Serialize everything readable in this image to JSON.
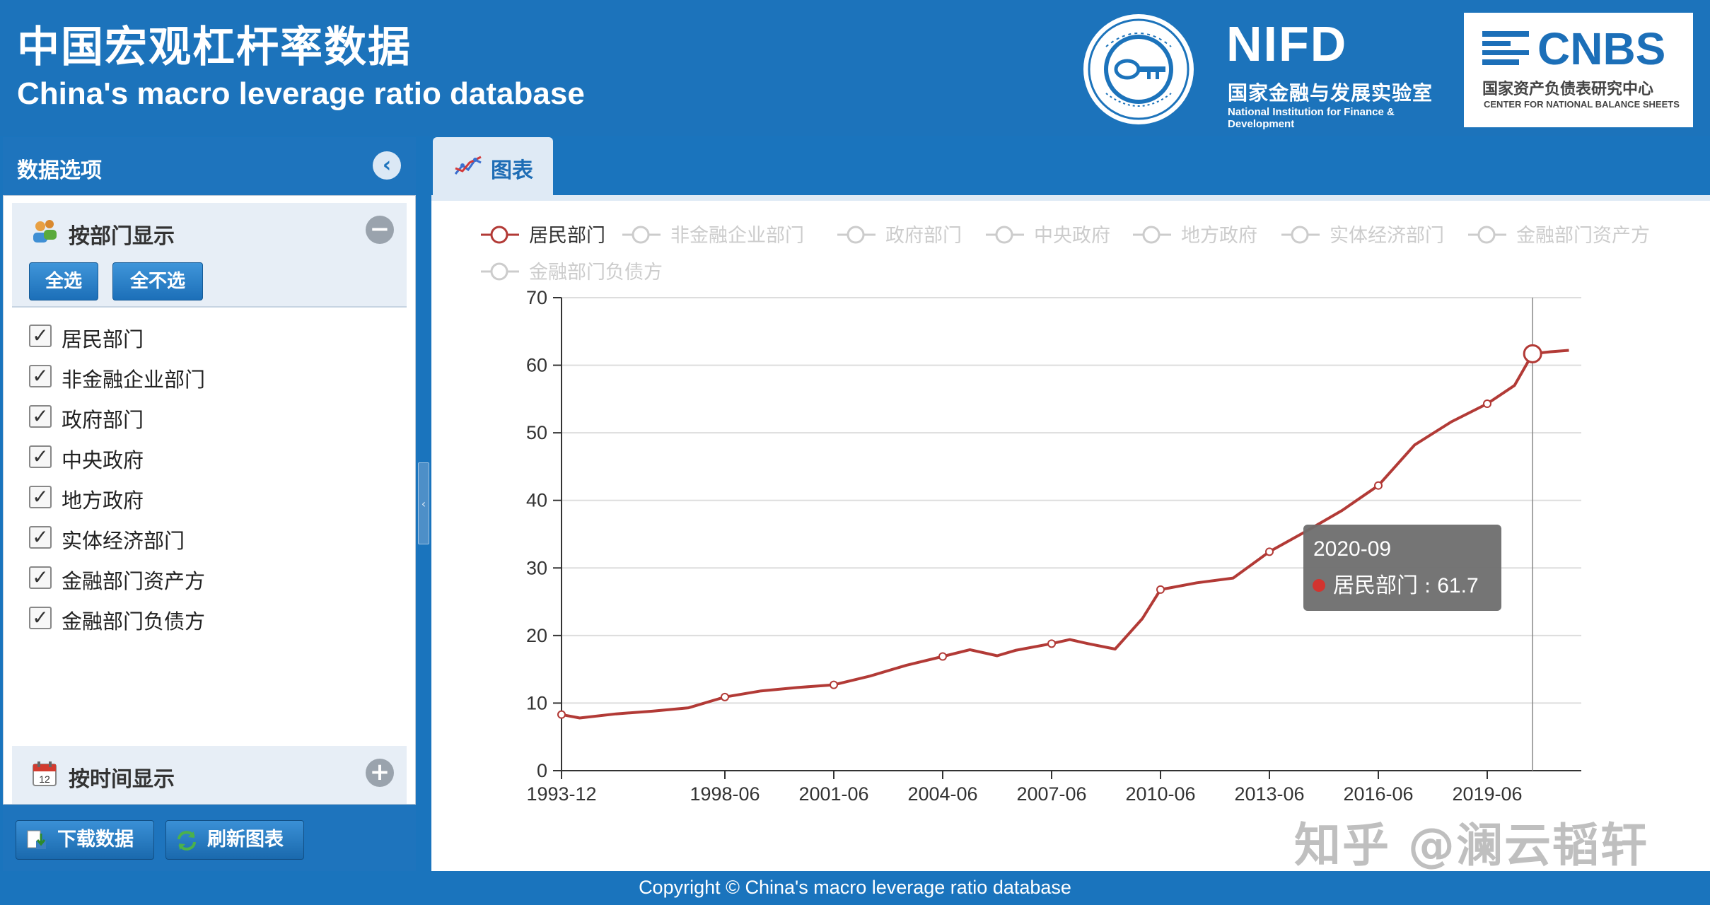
{
  "header": {
    "title_cn": "中国宏观杠杆率数据",
    "title_en": "China's macro leverage ratio database",
    "logo_seal": {
      "ring_text": "CHINA TOP THINK TANKS",
      "top_text": "国家高端智库"
    },
    "logo_nifd": {
      "name": "NIFD",
      "subtitle_cn": "国家金融与发展实验室",
      "subtitle_en": "National Institution for Finance & Development"
    },
    "logo_cnbs": {
      "name": "CNBS",
      "subtitle_cn": "国家资产负债表研究中心",
      "subtitle_en": "CENTER FOR NATIONAL BALANCE SHEETS"
    }
  },
  "sidebar": {
    "title": "数据选项",
    "by_sector": {
      "label": "按部门显示",
      "select_all": "全选",
      "select_none": "全不选",
      "items": [
        {
          "label": "居民部门",
          "checked": true
        },
        {
          "label": "非金融企业部门",
          "checked": true
        },
        {
          "label": "政府部门",
          "checked": true
        },
        {
          "label": "中央政府",
          "checked": true
        },
        {
          "label": "地方政府",
          "checked": true
        },
        {
          "label": "实体经济部门",
          "checked": true
        },
        {
          "label": "金融部门资产方",
          "checked": true
        },
        {
          "label": "金融部门负债方",
          "checked": true
        }
      ]
    },
    "by_time": {
      "label": "按时间显示"
    },
    "download_label": "下载数据",
    "refresh_label": "刷新图表"
  },
  "tabs": [
    {
      "label": "图表",
      "active": true
    }
  ],
  "colors": {
    "accent": "#1a74bd",
    "series_active": "#b23a36",
    "legend_inactive": "#cccccc",
    "tooltip_bg": "#6e6e6e"
  },
  "chart_data": {
    "type": "line",
    "legend": [
      {
        "name": "居民部门",
        "active": true
      },
      {
        "name": "非金融企业部门",
        "active": false
      },
      {
        "name": "政府部门",
        "active": false
      },
      {
        "name": "中央政府",
        "active": false
      },
      {
        "name": "地方政府",
        "active": false
      },
      {
        "name": "实体经济部门",
        "active": false
      },
      {
        "name": "金融部门资产方",
        "active": false
      },
      {
        "name": "金融部门负债方",
        "active": false
      }
    ],
    "x_tick_labels": [
      "1993-12",
      "1998-06",
      "2001-06",
      "2004-06",
      "2007-06",
      "2010-06",
      "2013-06",
      "2016-06",
      "2019-06"
    ],
    "ylim": [
      0,
      70
    ],
    "y_ticks": [
      0,
      10,
      20,
      30,
      40,
      50,
      60,
      70
    ],
    "grid": true,
    "series": [
      {
        "name": "居民部门",
        "points": [
          [
            "1993-12",
            8.3
          ],
          [
            "1994-06",
            7.8
          ],
          [
            "1995-06",
            8.4
          ],
          [
            "1996-06",
            8.8
          ],
          [
            "1997-06",
            9.3
          ],
          [
            "1998-06",
            10.9
          ],
          [
            "1999-06",
            11.8
          ],
          [
            "2000-06",
            12.3
          ],
          [
            "2001-06",
            12.7
          ],
          [
            "2002-06",
            14.0
          ],
          [
            "2003-06",
            15.6
          ],
          [
            "2004-06",
            16.9
          ],
          [
            "2005-03",
            17.9
          ],
          [
            "2005-12",
            17.0
          ],
          [
            "2006-06",
            17.8
          ],
          [
            "2007-06",
            18.8
          ],
          [
            "2007-12",
            19.4
          ],
          [
            "2008-06",
            18.8
          ],
          [
            "2009-03",
            18.0
          ],
          [
            "2009-12",
            22.5
          ],
          [
            "2010-06",
            26.8
          ],
          [
            "2011-06",
            27.8
          ],
          [
            "2012-06",
            28.5
          ],
          [
            "2013-06",
            32.4
          ],
          [
            "2014-06",
            35.4
          ],
          [
            "2015-06",
            38.5
          ],
          [
            "2016-06",
            42.2
          ],
          [
            "2017-06",
            48.2
          ],
          [
            "2018-06",
            51.6
          ],
          [
            "2019-06",
            54.3
          ],
          [
            "2020-03",
            57.0
          ],
          [
            "2020-09",
            61.7
          ],
          [
            "2021-03",
            62.0
          ],
          [
            "2021-09",
            62.2
          ]
        ]
      }
    ],
    "marked_points": [
      "1993-12",
      "1998-06",
      "2001-06",
      "2004-06",
      "2007-06",
      "2010-06",
      "2013-06",
      "2016-06",
      "2019-06",
      "2020-09"
    ],
    "tooltip": {
      "date": "2020-09",
      "series": "居民部门",
      "value": "61.7",
      "separator": " : "
    }
  },
  "footer": {
    "copyright": "Copyright © China's macro leverage ratio database"
  },
  "watermark": "知乎 @澜云韬轩"
}
